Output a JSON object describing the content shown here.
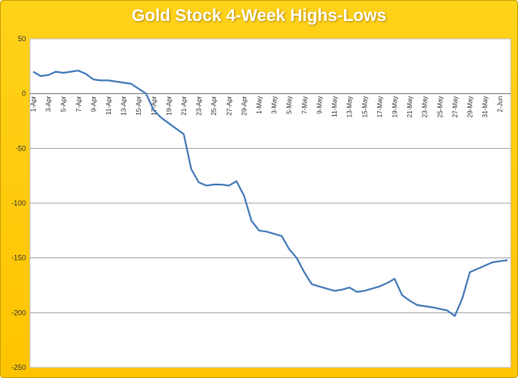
{
  "chart_data": {
    "type": "line",
    "title": "Gold Stock 4-Week Highs-Lows",
    "xlabel": "",
    "ylabel": "",
    "ylim": [
      -250,
      50
    ],
    "yticks": [
      50,
      0,
      -50,
      -100,
      -150,
      -200,
      -250
    ],
    "yticks_labels": [
      "50",
      "0",
      "-50",
      "-100",
      "-150",
      "-200",
      "-250"
    ],
    "xtick_labels": [
      "1-Apr",
      "3-Apr",
      "5-Apr",
      "7-Apr",
      "9-Apr",
      "11-Apr",
      "13-Apr",
      "15-Apr",
      "17-Apr",
      "19-Apr",
      "21-Apr",
      "23-Apr",
      "25-Apr",
      "27-Apr",
      "29-Apr",
      "1-May",
      "3-May",
      "5-May",
      "7-May",
      "9-May",
      "11-May",
      "13-May",
      "15-May",
      "17-May",
      "19-May",
      "21-May",
      "23-May",
      "25-May",
      "27-May",
      "29-May",
      "31-May",
      "2-Jun"
    ],
    "grid": "horizontal",
    "legend": "none",
    "colors": {
      "line": "#4a7ebb",
      "frame": "#ffc800",
      "plot_bg": "#ffffff",
      "grid": "#a6a6a6"
    },
    "series": [
      {
        "x": [
          "1-Apr",
          "2-Apr",
          "3-Apr",
          "4-Apr",
          "5-Apr",
          "6-Apr",
          "7-Apr",
          "8-Apr",
          "9-Apr",
          "10-Apr",
          "11-Apr",
          "12-Apr",
          "13-Apr",
          "14-Apr",
          "15-Apr",
          "16-Apr",
          "17-Apr",
          "18-Apr",
          "19-Apr",
          "20-Apr",
          "21-Apr",
          "22-Apr",
          "23-Apr",
          "24-Apr",
          "25-Apr",
          "26-Apr",
          "27-Apr",
          "28-Apr",
          "29-Apr",
          "30-Apr",
          "1-May",
          "2-May",
          "3-May",
          "4-May",
          "5-May",
          "6-May",
          "7-May",
          "8-May",
          "9-May",
          "10-May",
          "11-May",
          "12-May",
          "13-May",
          "14-May",
          "15-May",
          "16-May",
          "17-May",
          "18-May",
          "19-May",
          "20-May",
          "21-May",
          "22-May",
          "23-May",
          "24-May",
          "25-May",
          "26-May",
          "27-May",
          "28-May",
          "29-May",
          "30-May",
          "31-May",
          "1-Jun",
          "2-Jun",
          "3-Jun"
        ],
        "values": [
          20,
          16,
          17,
          20,
          19,
          null,
          21,
          18,
          13,
          12,
          12,
          null,
          10,
          9,
          null,
          0,
          -15,
          -22,
          -27,
          -32,
          -37,
          -69,
          -81,
          -84,
          -83,
          -83,
          -84,
          -80,
          -93,
          -116,
          -125,
          -126,
          null,
          -130,
          -142,
          -150,
          -163,
          -174,
          -176,
          null,
          -180,
          -179,
          -177,
          -181,
          -180,
          -178,
          -176,
          -173,
          -169,
          -184,
          -189,
          -193,
          null,
          -195,
          null,
          -198,
          -203,
          -187,
          -163,
          -160,
          -157,
          -154,
          -153,
          -152
        ]
      }
    ]
  }
}
